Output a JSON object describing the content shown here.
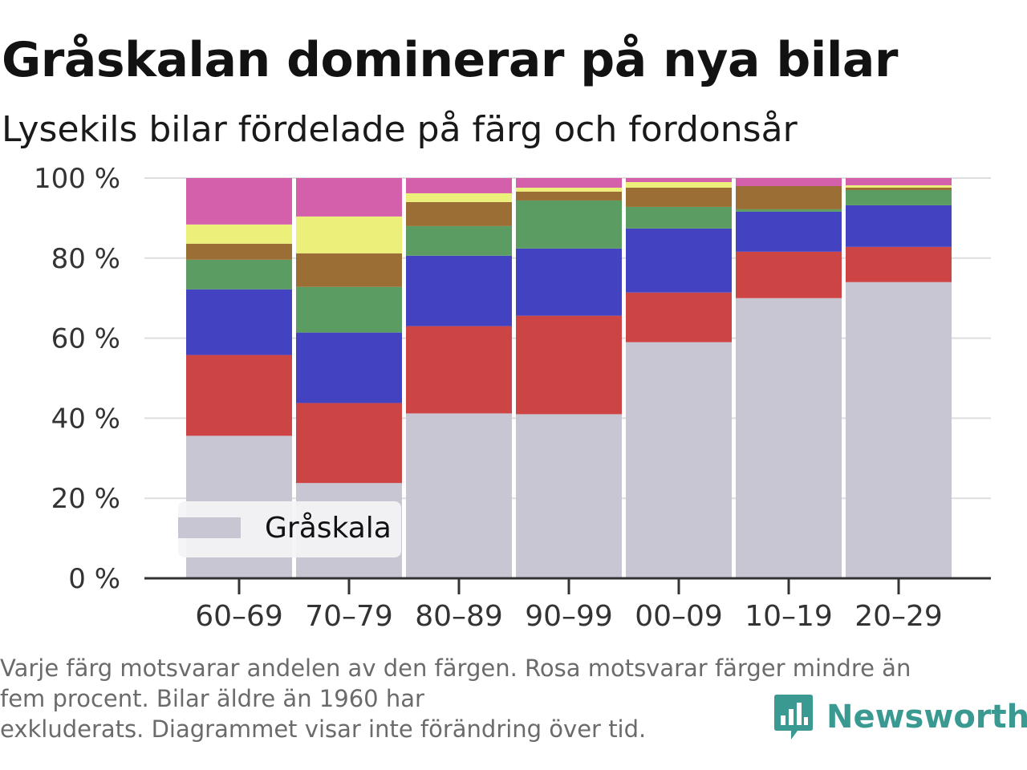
{
  "title": "Gråskalan dominerar på nya bilar",
  "subtitle": "Lysekils bilar fördelade på färg och fordonsår",
  "footnote": {
    "line1": "Varje färg motsvarar andelen av den färgen. Rosa motsvarar färger mindre än",
    "line2": "fem procent. Bilar äldre än 1960 har",
    "line3": "exkluderats. Diagrammet visar inte förändring över tid."
  },
  "logo": {
    "text": "Newsworthy",
    "icon": "newsworthy-bar-chart-bubble-icon",
    "color": "#3a9a92"
  },
  "chart_data": {
    "type": "bar",
    "stacked": true,
    "categories": [
      "60–69",
      "70–79",
      "80–89",
      "90–99",
      "00–09",
      "10–19",
      "20–29"
    ],
    "ylim": [
      0,
      100
    ],
    "yticks": [
      0,
      20,
      40,
      60,
      80,
      100
    ],
    "ytick_labels": [
      "0 %",
      "20 %",
      "40 %",
      "60 %",
      "80 %",
      "100 %"
    ],
    "grid": true,
    "legend": {
      "placement": "bottom-left",
      "entries": [
        {
          "label": "Gråskala",
          "color": "#c8c6d2"
        }
      ]
    },
    "series": [
      {
        "name": "Gråskala",
        "color": "#c8c6d2",
        "values": [
          35.6,
          23.8,
          41.2,
          41.0,
          59.0,
          70.0,
          74.0
        ]
      },
      {
        "color": "#cc4444",
        "values": [
          20.2,
          20.0,
          21.8,
          24.6,
          12.4,
          11.6,
          8.8
        ]
      },
      {
        "color": "#4343c2",
        "values": [
          16.4,
          17.6,
          17.6,
          16.8,
          16.0,
          10.0,
          10.4
        ]
      },
      {
        "color": "#5b9c62",
        "values": [
          7.4,
          11.4,
          7.4,
          12.0,
          5.4,
          0.6,
          3.8
        ]
      },
      {
        "color": "#9a6e34",
        "values": [
          4.0,
          8.4,
          6.0,
          2.2,
          4.8,
          5.8,
          0.6
        ]
      },
      {
        "color": "#ecf07a",
        "values": [
          4.8,
          9.2,
          2.2,
          1.0,
          1.4,
          0.0,
          0.6
        ]
      },
      {
        "color": "#d460ac",
        "values": [
          11.6,
          9.6,
          3.8,
          2.4,
          1.0,
          2.0,
          1.8
        ]
      }
    ]
  }
}
